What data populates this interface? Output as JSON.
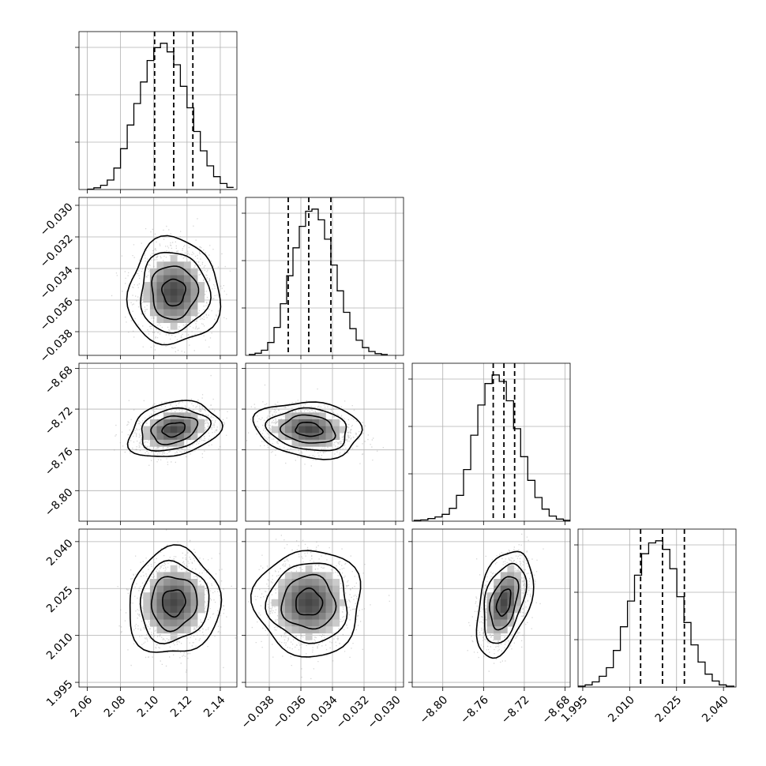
{
  "chart_data": {
    "type": "corner",
    "title": "",
    "grid": true,
    "parameters": [
      {
        "index": 0,
        "range": [
          2.055,
          2.15
        ],
        "ticks": [
          2.06,
          2.08,
          2.1,
          2.12,
          2.14
        ],
        "tick_labels": [
          "2.06",
          "2.08",
          "2.10",
          "2.12",
          "2.14"
        ],
        "median": 2.112,
        "quantiles": [
          2.1005,
          2.112,
          2.1235
        ],
        "histogram": {
          "bins": [
            2.06,
            2.064,
            2.068,
            2.072,
            2.076,
            2.08,
            2.084,
            2.088,
            2.092,
            2.096,
            2.1,
            2.104,
            2.108,
            2.112,
            2.116,
            2.12,
            2.124,
            2.128,
            2.132,
            2.136,
            2.14,
            2.144,
            2.148
          ],
          "counts": [
            1,
            4,
            10,
            22,
            50,
            95,
            150,
            200,
            250,
            300,
            330,
            340,
            320,
            290,
            240,
            190,
            135,
            90,
            55,
            30,
            14,
            5
          ]
        },
        "sigma": 0.011
      },
      {
        "index": 1,
        "range": [
          -0.0395,
          -0.0295
        ],
        "ticks": [
          -0.038,
          -0.036,
          -0.034,
          -0.032,
          -0.03
        ],
        "tick_labels": [
          "−0.038",
          "−0.036",
          "−0.034",
          "−0.032",
          "−0.030"
        ],
        "median": -0.0355,
        "quantiles": [
          -0.0368,
          -0.0355,
          -0.0341
        ],
        "histogram": {
          "bins": [
            -0.0393,
            -0.0389,
            -0.0385,
            -0.0381,
            -0.0377,
            -0.0373,
            -0.0369,
            -0.0365,
            -0.0361,
            -0.0357,
            -0.0353,
            -0.0349,
            -0.0345,
            -0.0341,
            -0.0337,
            -0.0333,
            -0.0329,
            -0.0325,
            -0.0321,
            -0.0317,
            -0.0313,
            -0.0309,
            -0.0305
          ],
          "counts": [
            2,
            5,
            12,
            30,
            65,
            120,
            185,
            250,
            300,
            335,
            340,
            315,
            270,
            210,
            150,
            100,
            62,
            35,
            18,
            9,
            4,
            2
          ]
        },
        "sigma": 0.00135
      },
      {
        "index": 2,
        "range": [
          -8.83,
          -8.675
        ],
        "ticks": [
          -8.8,
          -8.76,
          -8.72,
          -8.68
        ],
        "tick_labels": [
          "−8.80",
          "−8.76",
          "−8.72",
          "−8.68"
        ],
        "median": -8.74,
        "quantiles": [
          -8.7505,
          -8.74,
          -8.7295
        ],
        "histogram": {
          "bins": [
            -8.8286,
            -8.8216,
            -8.8146,
            -8.8076,
            -8.8006,
            -8.7936,
            -8.7866,
            -8.7796,
            -8.7726,
            -8.7656,
            -8.7586,
            -8.7516,
            -8.7446,
            -8.7376,
            -8.7306,
            -8.7236,
            -8.7166,
            -8.7096,
            -8.7026,
            -8.6956,
            -8.6886,
            -8.6816,
            -8.6746
          ],
          "counts": [
            2,
            3,
            6,
            10,
            16,
            30,
            60,
            120,
            200,
            270,
            320,
            340,
            325,
            280,
            215,
            150,
            95,
            55,
            28,
            12,
            5,
            2
          ]
        },
        "sigma": 0.011
      },
      {
        "index": 3,
        "range": [
          1.9935,
          2.044
        ],
        "ticks": [
          1.995,
          2.01,
          2.025,
          2.04
        ],
        "tick_labels": [
          "1.995",
          "2.010",
          "2.025",
          "2.040"
        ],
        "median": 2.0205,
        "quantiles": [
          2.0135,
          2.0205,
          2.0275
        ],
        "histogram": {
          "bins": [
            1.9935,
            1.99576,
            1.99801,
            2.00027,
            2.00253,
            2.00479,
            2.00704,
            2.0093,
            2.01156,
            2.01382,
            2.01607,
            2.01833,
            2.02059,
            2.02285,
            2.0251,
            2.02736,
            2.02962,
            2.03188,
            2.03413,
            2.03639,
            2.03865,
            2.0409,
            2.0435
          ],
          "counts": [
            2,
            5,
            12,
            25,
            45,
            85,
            140,
            200,
            260,
            310,
            335,
            340,
            320,
            275,
            210,
            150,
            98,
            58,
            30,
            14,
            5,
            2
          ]
        },
        "sigma": 0.0068
      }
    ],
    "correlations": [
      {
        "pair": [
          0,
          1
        ],
        "rho": 0.0
      },
      {
        "pair": [
          0,
          2
        ],
        "rho": 0.25
      },
      {
        "pair": [
          1,
          2
        ],
        "rho": -0.15
      },
      {
        "pair": [
          0,
          3
        ],
        "rho": 0.05
      },
      {
        "pair": [
          1,
          3
        ],
        "rho": 0.0
      },
      {
        "pair": [
          2,
          3
        ],
        "rho": 0.4
      }
    ],
    "contour_levels_sigma": [
      0.5,
      1.0,
      1.5,
      2.0
    ],
    "scatter_color": "#888888",
    "density_color": "#000000"
  }
}
